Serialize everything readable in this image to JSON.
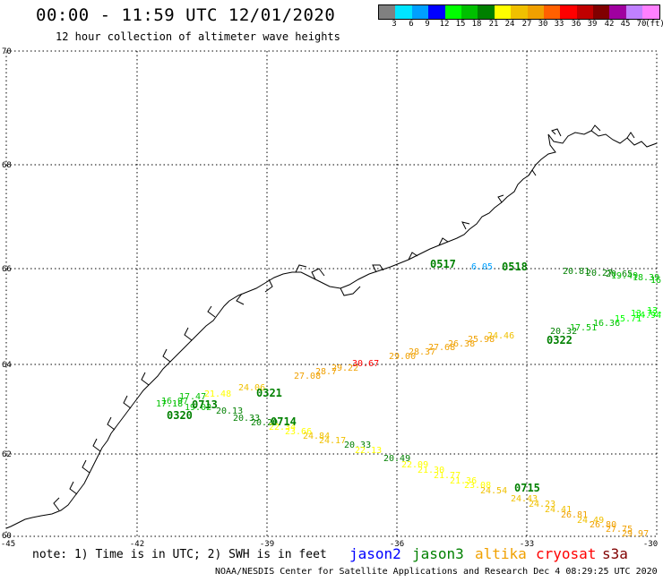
{
  "header": {
    "title": "00:00 - 11:59 UTC 12/01/2020",
    "subtitle": "12 hour collection of altimeter wave heights"
  },
  "colorbar": {
    "colors": [
      "#808080",
      "#00e5ff",
      "#00a0ff",
      "#0000ff",
      "#00ff00",
      "#00c000",
      "#008000",
      "#ffff00",
      "#f0c000",
      "#f0a000",
      "#ff6000",
      "#ff0000",
      "#c00000",
      "#800000",
      "#a000a0",
      "#c080ff",
      "#ff80ff",
      "#000000"
    ],
    "labels": [
      "3",
      "6",
      "9",
      "12",
      "15",
      "18",
      "21",
      "24",
      "27",
      "30",
      "33",
      "36",
      "39",
      "42",
      "45",
      "70",
      "(ft)"
    ]
  },
  "axes": {
    "lat_ticks": [
      "70",
      "68",
      "66",
      "64",
      "62",
      "60"
    ],
    "lon_ticks": [
      "-45",
      "-42",
      "-39",
      "-36",
      "-33",
      "-30"
    ]
  },
  "passes": [
    {
      "time": "0517",
      "color": "#008000"
    },
    {
      "time": "0518",
      "color": "#008000"
    },
    {
      "time": "0322",
      "color": "#008000"
    },
    {
      "time": "0321",
      "color": "#008000"
    },
    {
      "time": "0713",
      "color": "#008000"
    },
    {
      "time": "0320",
      "color": "#008000"
    },
    {
      "time": "0714",
      "color": "#008000"
    },
    {
      "time": "0715",
      "color": "#008000"
    }
  ],
  "values": {
    "track_0518": [
      {
        "v": "6.05",
        "c": "#00a0ff"
      },
      {
        "v": "20.81",
        "c": "#008000"
      },
      {
        "v": "20.27",
        "c": "#008000"
      },
      {
        "v": "20.65",
        "c": "#008000"
      },
      {
        "v": "19.49",
        "c": "#00c000"
      },
      {
        "v": "18.39",
        "c": "#00c000"
      },
      {
        "v": "16.",
        "c": "#00c000"
      }
    ],
    "track_0322": [
      {
        "v": "20.32",
        "c": "#008000"
      },
      {
        "v": "17.51",
        "c": "#00c000"
      },
      {
        "v": "16.36",
        "c": "#00c000"
      },
      {
        "v": "15.71",
        "c": "#00ff00"
      },
      {
        "v": "14.94",
        "c": "#00ff00"
      },
      {
        "v": "13.72",
        "c": "#00ff00"
      },
      {
        "v": "13.",
        "c": "#00ff00"
      }
    ],
    "track_0321": [
      {
        "v": "16.97",
        "c": "#00c000"
      },
      {
        "v": "17.47",
        "c": "#00c000"
      },
      {
        "v": "21.48",
        "c": "#ffff00"
      },
      {
        "v": "24.06",
        "c": "#f0c000"
      },
      {
        "v": "27.08",
        "c": "#f0a000"
      },
      {
        "v": "28.7",
        "c": "#f0a000"
      },
      {
        "v": "29.22",
        "c": "#f0a000"
      },
      {
        "v": "30.67",
        "c": "#ff0000"
      },
      {
        "v": "29.00",
        "c": "#f0a000"
      },
      {
        "v": "28.37",
        "c": "#f0a000"
      },
      {
        "v": "27.68",
        "c": "#f0a000"
      },
      {
        "v": "26.38",
        "c": "#f0a000"
      },
      {
        "v": "25.98",
        "c": "#f0a000"
      },
      {
        "v": "24.46",
        "c": "#f0c000"
      }
    ],
    "track_0713": [
      {
        "v": "17.18",
        "c": "#00c000"
      },
      {
        "v": "19.02",
        "c": "#00c000"
      },
      {
        "v": "20.13",
        "c": "#008000"
      },
      {
        "v": "20.33",
        "c": "#008000"
      },
      {
        "v": "20.20",
        "c": "#008000"
      },
      {
        "v": "22.34",
        "c": "#ffff00"
      },
      {
        "v": "23.66",
        "c": "#ffff00"
      }
    ],
    "track_0714": [
      {
        "v": "24.84",
        "c": "#f0c000"
      },
      {
        "v": "24.17",
        "c": "#f0c000"
      },
      {
        "v": "20.33",
        "c": "#008000"
      },
      {
        "v": "22.13",
        "c": "#ffff00"
      },
      {
        "v": "20.49",
        "c": "#008000"
      },
      {
        "v": "22.09",
        "c": "#ffff00"
      },
      {
        "v": "21.30",
        "c": "#ffff00"
      },
      {
        "v": "21.77",
        "c": "#ffff00"
      },
      {
        "v": "21.36",
        "c": "#ffff00"
      },
      {
        "v": "23.08",
        "c": "#ffff00"
      },
      {
        "v": "24.54",
        "c": "#f0c000"
      }
    ],
    "track_0715": [
      {
        "v": "24.43",
        "c": "#f0c000"
      },
      {
        "v": "24.23",
        "c": "#f0c000"
      },
      {
        "v": "24.41",
        "c": "#f0c000"
      },
      {
        "v": "26.81",
        "c": "#f0a000"
      },
      {
        "v": "24.49",
        "c": "#f0c000"
      },
      {
        "v": "26.80",
        "c": "#f0a000"
      },
      {
        "v": "27.75",
        "c": "#f0a000"
      },
      {
        "v": "29.97",
        "c": "#f0a000"
      }
    ]
  },
  "note": {
    "text": "note: 1) Time is in UTC; 2) SWH is in feet"
  },
  "legend": [
    {
      "label": "jason2",
      "color": "#0000ff"
    },
    {
      "label": "jason3",
      "color": "#008000"
    },
    {
      "label": "altika",
      "color": "#f0a000"
    },
    {
      "label": "cryosat",
      "color": "#ff0000"
    },
    {
      "label": "s3a",
      "color": "#800000"
    }
  ],
  "footer": {
    "text": "NOAA/NESDIS Center for Satellite Applications and Research    Dec  4 08:29:25 UTC 2020"
  }
}
